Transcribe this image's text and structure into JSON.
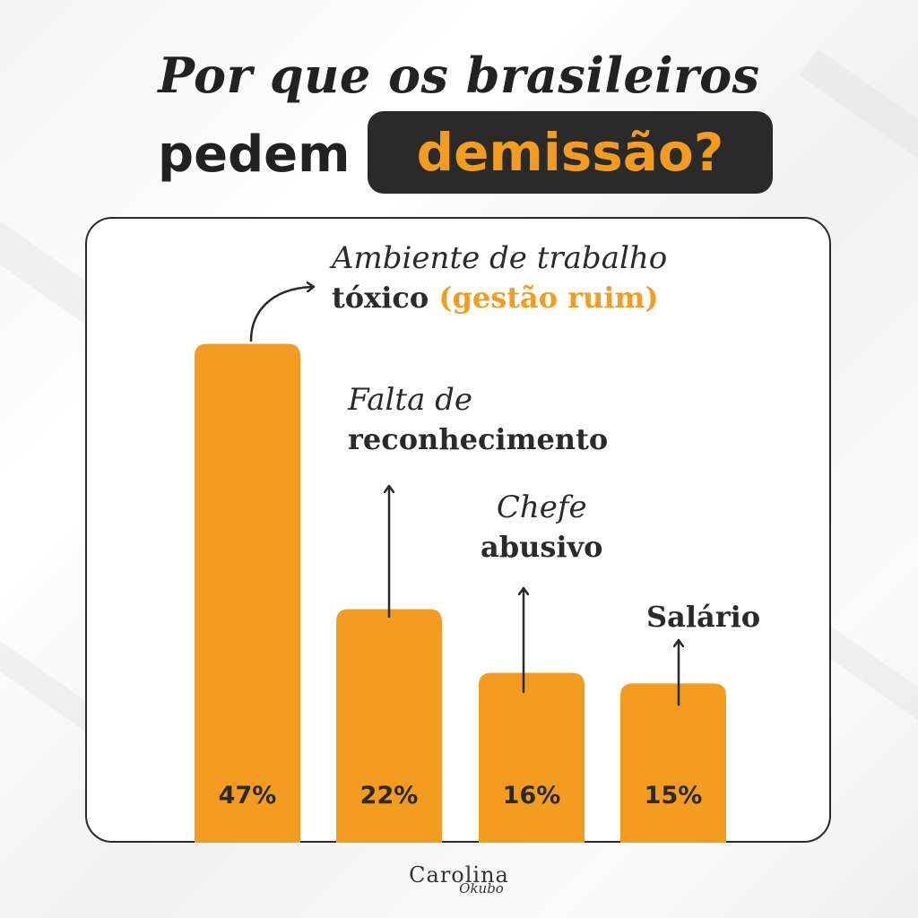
{
  "title": {
    "line1": "Por que os brasileiros",
    "line2_plain": "pedem",
    "line2_highlight": "demissão?"
  },
  "colors": {
    "bar": "#f39c1f",
    "dark": "#2a2a2a",
    "accent": "#f39c1f"
  },
  "chart_data": {
    "type": "bar",
    "categories": [
      "Ambiente de trabalho tóxico (gestão ruim)",
      "Falta de reconhecimento",
      "Chefe abusivo",
      "Salário"
    ],
    "values": [
      47,
      22,
      16,
      15
    ],
    "value_labels": [
      "47%",
      "22%",
      "16%",
      "15%"
    ],
    "ylim": [
      0,
      50
    ],
    "grid": false,
    "labels": [
      {
        "l1": "Ambiente de trabalho",
        "l2": "tóxico",
        "l2_accent": "(gestão ruim)"
      },
      {
        "l1": "Falta de",
        "l2": "reconhecimento"
      },
      {
        "l1": "Chefe",
        "l2": "abusivo"
      },
      {
        "l1": "",
        "l2": "Salário"
      }
    ]
  },
  "logo": {
    "name": "Carolina",
    "surname": "Okubo"
  }
}
